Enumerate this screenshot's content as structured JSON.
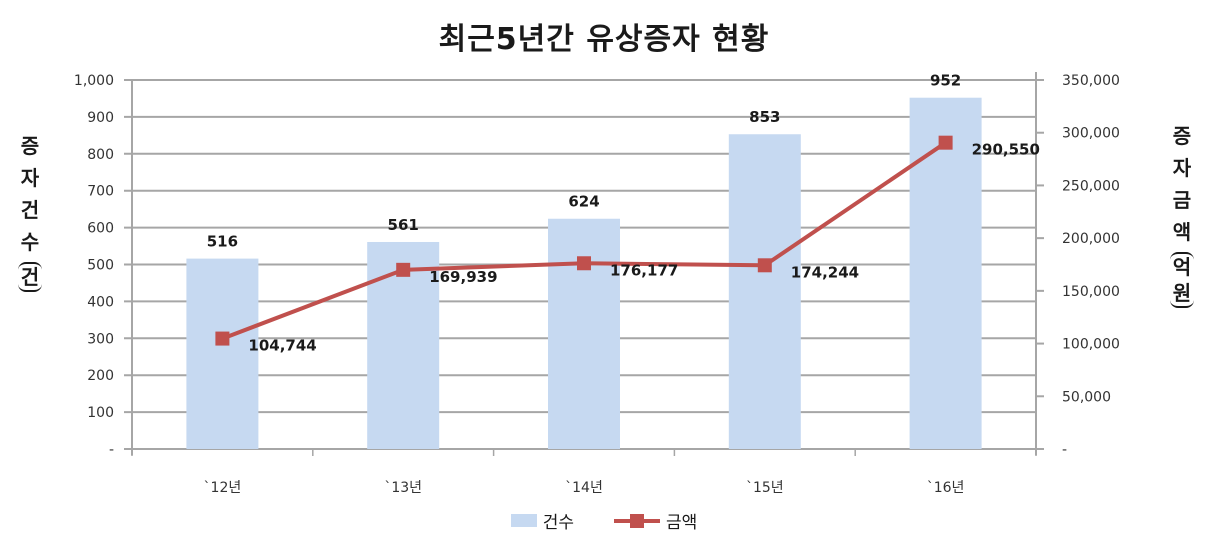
{
  "chart_data": {
    "type": "bar+line",
    "title": "최근5년간 유상증자 현황",
    "categories": [
      "`12년",
      "`13년",
      "`14년",
      "`15년",
      "`16년"
    ],
    "series": [
      {
        "name": "건수",
        "type": "bar",
        "axis": "left",
        "color": "#c6d9f1",
        "values": [
          516,
          561,
          624,
          853,
          952
        ],
        "labels": [
          "516",
          "561",
          "624",
          "853",
          "952"
        ]
      },
      {
        "name": "금액",
        "type": "line",
        "axis": "right",
        "color": "#c0504d",
        "values": [
          104744,
          169939,
          176177,
          174244,
          290550
        ],
        "labels": [
          "104,744",
          "169,939",
          "176,177",
          "174,244",
          "290,550"
        ]
      }
    ],
    "ylabel_left": "증자건수(건)",
    "ylabel_right": "증자금액(억원)",
    "ylim_left": [
      0,
      1000
    ],
    "ylim_right": [
      0,
      350000
    ],
    "yticks_left": [
      "-",
      "100",
      "200",
      "300",
      "400",
      "500",
      "600",
      "700",
      "800",
      "900",
      "1,000"
    ],
    "yticks_right": [
      "-",
      "50,000",
      "100,000",
      "150,000",
      "200,000",
      "250,000",
      "300,000",
      "350,000"
    ],
    "grid": true,
    "legend_position": "bottom"
  },
  "axis_labels": {
    "left_chars": [
      "증",
      "자",
      "건",
      "수",
      "(건)"
    ],
    "right_chars": [
      "증",
      "자",
      "금",
      "액",
      "(억원)"
    ]
  },
  "legend": {
    "bar_label": "건수",
    "line_label": "금액"
  }
}
